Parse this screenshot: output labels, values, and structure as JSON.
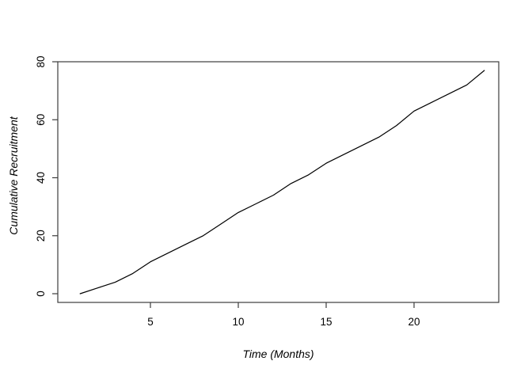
{
  "figure": {
    "background_color": "#ffffff",
    "axis_color": "#3d3d3d",
    "text_color": "#000000"
  },
  "chart_data": {
    "type": "line",
    "title": "",
    "xlabel": "Time (Months)",
    "ylabel": "Cumulative Recruitment",
    "x": [
      1,
      2,
      3,
      4,
      5,
      6,
      7,
      8,
      9,
      10,
      11,
      12,
      13,
      14,
      15,
      16,
      17,
      18,
      19,
      20,
      21,
      22,
      23,
      24
    ],
    "series": [
      {
        "name": "Cumulative Recruitment",
        "color": "#000000",
        "values": [
          0,
          2,
          4,
          7,
          11,
          14,
          17,
          20,
          24,
          28,
          31,
          34,
          38,
          41,
          45,
          48,
          51,
          54,
          58,
          63,
          66,
          69,
          72,
          77
        ]
      }
    ],
    "xticks": [
      5,
      10,
      15,
      20
    ],
    "yticks": [
      0,
      20,
      40,
      60,
      80
    ],
    "xlim": [
      0.1,
      24.9
    ],
    "ylim": [
      -3,
      83
    ],
    "grid": false,
    "legend": "none",
    "box": true
  }
}
